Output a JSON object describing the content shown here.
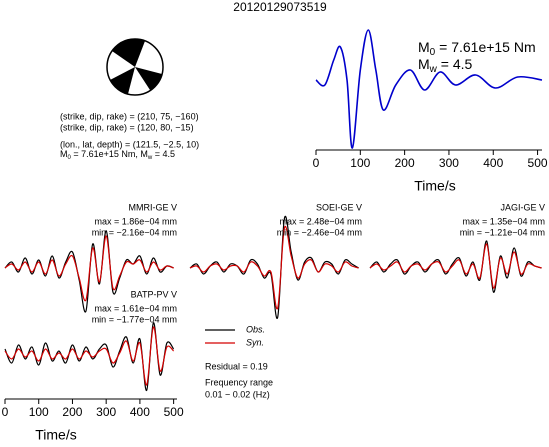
{
  "title": "20120129073519",
  "focal": {
    "lines": [
      "(strike, dip, rake) = (210, 75, −160)",
      "(strike, dip, rake) = (120, 80, −15)",
      "(lon., lat, depth) = (121.5, −2.5, 10)"
    ],
    "moment": [
      "M",
      "0",
      " = 7.61e+15 Nm, M",
      "w",
      " = 4.5"
    ]
  },
  "legend": [
    {
      "name": "Obs.",
      "color": "#000000"
    },
    {
      "name": "Syn.",
      "color": "#d40000"
    }
  ],
  "residual": "Residual = 0.19",
  "frequency": [
    "Frequency range",
    "0.01 − 0.02 (Hz)"
  ],
  "chart_data": [
    {
      "type": "line",
      "xlabel": "Time/s",
      "annotations": [
        [
          "M",
          "0",
          " = 7.61e+15 Nm"
        ],
        [
          "M",
          "w",
          " = 4.5"
        ]
      ],
      "x": [
        0,
        20,
        40,
        55,
        70,
        82,
        100,
        118,
        135,
        152,
        180,
        213,
        245,
        280,
        315,
        360,
        405,
        455,
        510
      ],
      "series": [
        {
          "color": "#0000cc",
          "values": [
            0,
            -0.1,
            0.4,
            0.66,
            0,
            -1.36,
            0.2,
            1.0,
            0.2,
            -0.6,
            -0.1,
            0.2,
            -0.2,
            0.16,
            -0.1,
            0.1,
            -0.16,
            0.06,
            0
          ]
        }
      ],
      "xlim": [
        0,
        510
      ],
      "xticks": [
        0,
        100,
        200,
        300,
        400,
        500
      ],
      "ylim": [
        -1.4,
        1.1
      ]
    },
    {
      "type": "line",
      "title": "MMRI-GE V",
      "annotations": [
        "max = 1.86e−04 mm",
        "min = −2.16e−04 mm"
      ],
      "x": [
        0,
        20,
        40,
        60,
        80,
        100,
        120,
        140,
        160,
        180,
        200,
        220,
        240,
        260,
        280,
        300,
        320,
        340,
        360,
        380,
        400,
        420,
        440,
        460,
        480,
        500
      ],
      "series": [
        {
          "color": "#000000",
          "values": [
            0,
            0.3,
            -0.2,
            0.5,
            -0.3,
            0.4,
            -0.4,
            0.6,
            -0.5,
            0.3,
            0.8,
            -0.6,
            -2.16,
            1.2,
            -0.8,
            1.86,
            -1.2,
            -0.5,
            0.4,
            0.2,
            0.6,
            -0.3,
            0.5,
            -0.2,
            0.1,
            0
          ]
        },
        {
          "color": "#d40000",
          "values": [
            0,
            0.2,
            -0.1,
            0.3,
            -0.2,
            0.3,
            -0.3,
            0.4,
            -0.4,
            0.2,
            0.6,
            -0.5,
            -1.6,
            1.0,
            -0.7,
            1.6,
            -1.0,
            -0.4,
            0.3,
            0.2,
            0.4,
            -0.2,
            0.3,
            -0.1,
            0.1,
            0
          ]
        }
      ],
      "xlim": [
        0,
        510
      ],
      "ylim": [
        -2.2,
        2.2
      ]
    },
    {
      "type": "line",
      "title": "SOEI-GE V",
      "annotations": [
        "max = 2.48e−04 mm",
        "min = −2.46e−04 mm"
      ],
      "x": [
        0,
        20,
        40,
        60,
        80,
        100,
        120,
        140,
        160,
        180,
        200,
        220,
        240,
        260,
        280,
        300,
        320,
        340,
        360,
        380,
        400,
        420,
        440,
        460,
        480,
        500
      ],
      "series": [
        {
          "color": "#000000",
          "values": [
            0,
            0.2,
            -0.3,
            0.1,
            0.3,
            -0.2,
            0.2,
            0.1,
            -0.3,
            0.4,
            0.2,
            -0.5,
            -0.3,
            -2.46,
            2.48,
            0.8,
            -0.6,
            0.3,
            0.5,
            -0.2,
            0.3,
            0.2,
            -0.3,
            0.4,
            0.2,
            0
          ]
        },
        {
          "color": "#d40000",
          "values": [
            0,
            0.1,
            -0.2,
            0.1,
            0.2,
            -0.1,
            0.1,
            0.1,
            -0.2,
            0.3,
            0.1,
            -0.4,
            -0.2,
            -2.0,
            2.0,
            0.6,
            -0.5,
            0.2,
            0.4,
            -0.2,
            0.2,
            0.1,
            -0.2,
            0.3,
            0.1,
            0
          ]
        }
      ],
      "xlim": [
        0,
        510
      ],
      "ylim": [
        -2.2,
        2.2
      ]
    },
    {
      "type": "line",
      "title": "JAGI-GE V",
      "annotations": [
        "max = 1.35e−04 mm",
        "min = −1.21e−04 mm"
      ],
      "x": [
        0,
        20,
        40,
        60,
        80,
        100,
        120,
        140,
        160,
        180,
        200,
        220,
        240,
        260,
        280,
        300,
        320,
        340,
        360,
        380,
        400,
        420,
        440,
        460,
        480,
        500
      ],
      "series": [
        {
          "color": "#000000",
          "values": [
            0,
            0.3,
            -0.2,
            0.2,
            0.4,
            -0.3,
            0.1,
            0.3,
            -0.2,
            0.2,
            0.4,
            -0.3,
            0.2,
            0.5,
            -0.4,
            0.3,
            -0.6,
            1.35,
            -1.21,
            0.6,
            -0.5,
            1.0,
            -0.4,
            0.3,
            0.1,
            0
          ]
        },
        {
          "color": "#d40000",
          "values": [
            0,
            0.2,
            -0.1,
            0.1,
            0.3,
            -0.2,
            0.1,
            0.2,
            -0.1,
            0.2,
            0.3,
            -0.2,
            0.1,
            0.4,
            -0.3,
            0.2,
            -0.5,
            1.2,
            -1.0,
            0.5,
            -0.3,
            0.8,
            -0.3,
            0.2,
            0.1,
            0
          ]
        }
      ],
      "xlim": [
        0,
        510
      ],
      "ylim": [
        -2.2,
        2.2
      ]
    },
    {
      "type": "line",
      "title": "BATP-PV V",
      "annotations": [
        "max = 1.61e−04 mm",
        "min = −1.77e−04 mm"
      ],
      "xlabel": "Time/s",
      "x": [
        0,
        20,
        40,
        60,
        80,
        100,
        120,
        140,
        160,
        180,
        200,
        220,
        240,
        260,
        280,
        300,
        320,
        340,
        360,
        380,
        400,
        420,
        440,
        460,
        480,
        500
      ],
      "series": [
        {
          "color": "#000000",
          "values": [
            0.3,
            -0.4,
            0.5,
            -0.2,
            0.4,
            -0.5,
            0.6,
            -0.3,
            0.2,
            -0.4,
            0.5,
            -0.3,
            0.4,
            -0.2,
            0.3,
            0.5,
            -0.6,
            0.2,
            0.9,
            -0.4,
            0.8,
            -1.77,
            1.61,
            -1.0,
            0.6,
            0.3
          ]
        },
        {
          "color": "#d40000",
          "values": [
            0.2,
            -0.2,
            0.3,
            -0.1,
            0.2,
            -0.3,
            0.3,
            -0.2,
            0.1,
            -0.2,
            0.3,
            -0.2,
            0.2,
            -0.1,
            0.2,
            0.3,
            -0.4,
            0.1,
            0.7,
            -0.3,
            0.6,
            -1.5,
            1.4,
            -0.8,
            0.4,
            0.2
          ]
        }
      ],
      "xlim": [
        0,
        510
      ],
      "xticks": [
        0,
        100,
        200,
        300,
        400,
        500
      ],
      "ylim": [
        -2.2,
        2.2
      ]
    }
  ]
}
